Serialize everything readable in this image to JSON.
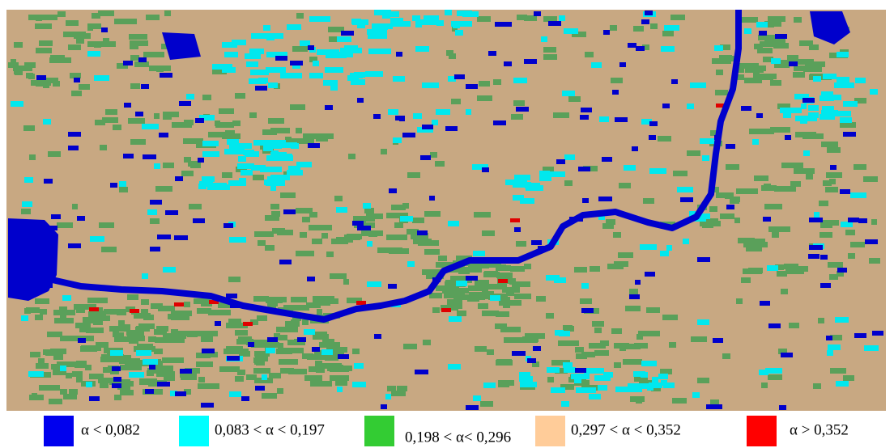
{
  "legend": [
    {
      "label": "α < 0,082",
      "color": "#0000ee"
    },
    {
      "label": "0,083 < α < 0,197",
      "color": "#00ffff"
    },
    {
      "label": "0,198 < α< 0,296",
      "color": "#33cc33"
    },
    {
      "label": "0,297 < α < 0,352",
      "color": "#ffcc99"
    },
    {
      "label": "α > 0,352",
      "color": "#ff0000"
    }
  ]
}
